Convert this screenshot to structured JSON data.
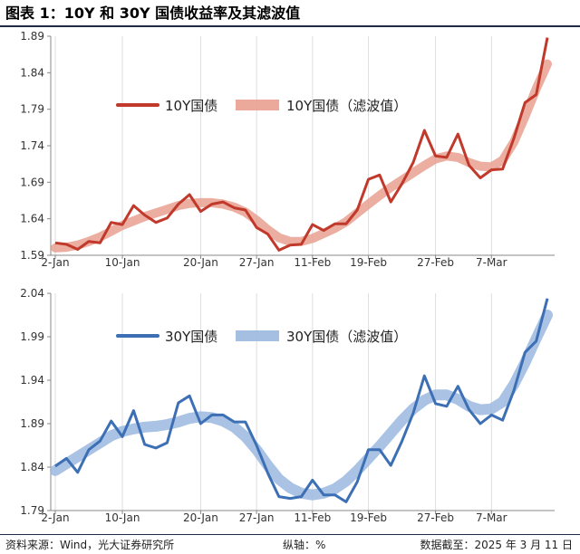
{
  "title": "图表 1：10Y 和 30Y 国债收益率及其滤波值",
  "footer": {
    "source": "资料来源：Wind，光大证券研究所",
    "axis_note": "纵轴：%",
    "date": "数据截至：2025 年 3 月 11 日"
  },
  "colors": {
    "line_10y": "#c0392b",
    "band_10y": "#e8a090",
    "line_30y": "#3d6fb5",
    "band_30y": "#9bb8e0",
    "grid": "#dedede",
    "axis": "#888888"
  },
  "chart_data": [
    {
      "type": "line",
      "title": "",
      "xlabel": "",
      "ylabel": "",
      "x_tick_labels": [
        "2-Jan",
        "10-Jan",
        "20-Jan",
        "27-Jan",
        "11-Feb",
        "19-Feb",
        "27-Feb",
        "7-Mar"
      ],
      "y_ticks": [
        "1.89",
        "1.84",
        "1.79",
        "1.74",
        "1.69",
        "1.64",
        "1.59"
      ],
      "ylim": [
        1.59,
        1.89
      ],
      "grid": "vertical",
      "legend": "top-left",
      "series": [
        {
          "name": "10Y国债",
          "style": "line",
          "values": [
            1.607,
            1.605,
            1.598,
            1.609,
            1.607,
            1.635,
            1.632,
            1.658,
            1.645,
            1.635,
            1.641,
            1.66,
            1.673,
            1.65,
            1.66,
            1.663,
            1.655,
            1.652,
            1.628,
            1.619,
            1.597,
            1.604,
            1.605,
            1.632,
            1.624,
            1.633,
            1.633,
            1.652,
            1.694,
            1.7,
            1.663,
            1.688,
            1.717,
            1.761,
            1.726,
            1.724,
            1.756,
            1.713,
            1.696,
            1.707,
            1.708,
            1.75,
            1.799,
            1.81,
            1.888
          ]
        },
        {
          "name": "10Y国债（滤波值）",
          "style": "band",
          "values": [
            1.6,
            1.601,
            1.604,
            1.609,
            1.615,
            1.623,
            1.631,
            1.637,
            1.643,
            1.648,
            1.653,
            1.658,
            1.661,
            1.662,
            1.662,
            1.66,
            1.656,
            1.649,
            1.638,
            1.625,
            1.614,
            1.609,
            1.609,
            1.613,
            1.62,
            1.627,
            1.636,
            1.648,
            1.66,
            1.672,
            1.683,
            1.693,
            1.703,
            1.713,
            1.722,
            1.726,
            1.724,
            1.717,
            1.712,
            1.711,
            1.72,
            1.745,
            1.78,
            1.818,
            1.852
          ]
        }
      ]
    },
    {
      "type": "line",
      "title": "",
      "xlabel": "",
      "ylabel": "",
      "x_tick_labels": [
        "2-Jan",
        "10-Jan",
        "20-Jan",
        "27-Jan",
        "11-Feb",
        "19-Feb",
        "27-Feb",
        "7-Mar"
      ],
      "y_ticks": [
        "2.04",
        "1.99",
        "1.94",
        "1.89",
        "1.84",
        "1.79"
      ],
      "ylim": [
        1.79,
        2.04
      ],
      "grid": "vertical",
      "legend": "top-left",
      "series": [
        {
          "name": "30Y国债",
          "style": "line",
          "values": [
            1.841,
            1.85,
            1.834,
            1.86,
            1.87,
            1.893,
            1.875,
            1.905,
            1.866,
            1.862,
            1.868,
            1.914,
            1.922,
            1.89,
            1.9,
            1.9,
            1.892,
            1.892,
            1.865,
            1.833,
            1.806,
            1.804,
            1.806,
            1.825,
            1.808,
            1.808,
            1.8,
            1.823,
            1.86,
            1.86,
            1.842,
            1.87,
            1.902,
            1.945,
            1.913,
            1.91,
            1.933,
            1.906,
            1.89,
            1.9,
            1.894,
            1.928,
            1.972,
            1.985,
            2.034
          ]
        },
        {
          "name": "30Y国债（滤波值）",
          "style": "band",
          "values": [
            1.836,
            1.844,
            1.852,
            1.86,
            1.868,
            1.876,
            1.881,
            1.884,
            1.886,
            1.887,
            1.889,
            1.892,
            1.896,
            1.898,
            1.897,
            1.893,
            1.886,
            1.875,
            1.86,
            1.842,
            1.826,
            1.816,
            1.81,
            1.808,
            1.81,
            1.815,
            1.824,
            1.836,
            1.85,
            1.864,
            1.879,
            1.894,
            1.907,
            1.917,
            1.923,
            1.923,
            1.918,
            1.91,
            1.906,
            1.907,
            1.915,
            1.935,
            1.96,
            1.988,
            2.015
          ]
        }
      ]
    }
  ]
}
